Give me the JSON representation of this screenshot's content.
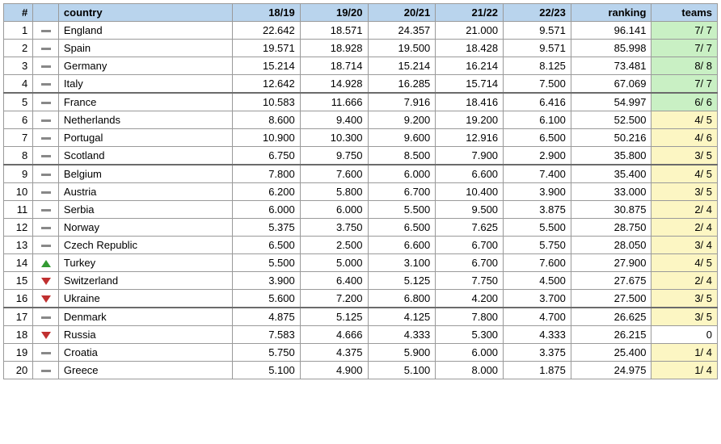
{
  "colors": {
    "header_bg": "#b9d4ed",
    "border": "#9a9a9a",
    "separator": "#6b6b6b",
    "teams_green": "#c9f0c4",
    "teams_yellow": "#fcf6c3",
    "teams_plain": "#ffffff",
    "up": "#339a33",
    "down": "#c03030",
    "flat": "#888888"
  },
  "headers": {
    "rank": "#",
    "move": "",
    "country": "country",
    "seasons": [
      "18/19",
      "19/20",
      "20/21",
      "21/22",
      "22/23"
    ],
    "ranking": "ranking",
    "teams": "teams"
  },
  "separators_after": [
    4,
    8,
    16
  ],
  "rows": [
    {
      "rank": 1,
      "trend": "flat",
      "country": "England",
      "s": [
        "22.642",
        "18.571",
        "24.357",
        "21.000",
        "9.571"
      ],
      "ranking": "96.141",
      "teams": "7/ 7",
      "teams_color": "teams_green"
    },
    {
      "rank": 2,
      "trend": "flat",
      "country": "Spain",
      "s": [
        "19.571",
        "18.928",
        "19.500",
        "18.428",
        "9.571"
      ],
      "ranking": "85.998",
      "teams": "7/ 7",
      "teams_color": "teams_green"
    },
    {
      "rank": 3,
      "trend": "flat",
      "country": "Germany",
      "s": [
        "15.214",
        "18.714",
        "15.214",
        "16.214",
        "8.125"
      ],
      "ranking": "73.481",
      "teams": "8/ 8",
      "teams_color": "teams_green"
    },
    {
      "rank": 4,
      "trend": "flat",
      "country": "Italy",
      "s": [
        "12.642",
        "14.928",
        "16.285",
        "15.714",
        "7.500"
      ],
      "ranking": "67.069",
      "teams": "7/ 7",
      "teams_color": "teams_green"
    },
    {
      "rank": 5,
      "trend": "flat",
      "country": "France",
      "s": [
        "10.583",
        "11.666",
        "7.916",
        "18.416",
        "6.416"
      ],
      "ranking": "54.997",
      "teams": "6/ 6",
      "teams_color": "teams_green"
    },
    {
      "rank": 6,
      "trend": "flat",
      "country": "Netherlands",
      "s": [
        "8.600",
        "9.400",
        "9.200",
        "19.200",
        "6.100"
      ],
      "ranking": "52.500",
      "teams": "4/ 5",
      "teams_color": "teams_yellow"
    },
    {
      "rank": 7,
      "trend": "flat",
      "country": "Portugal",
      "s": [
        "10.900",
        "10.300",
        "9.600",
        "12.916",
        "6.500"
      ],
      "ranking": "50.216",
      "teams": "4/ 6",
      "teams_color": "teams_yellow"
    },
    {
      "rank": 8,
      "trend": "flat",
      "country": "Scotland",
      "s": [
        "6.750",
        "9.750",
        "8.500",
        "7.900",
        "2.900"
      ],
      "ranking": "35.800",
      "teams": "3/ 5",
      "teams_color": "teams_yellow"
    },
    {
      "rank": 9,
      "trend": "flat",
      "country": "Belgium",
      "s": [
        "7.800",
        "7.600",
        "6.000",
        "6.600",
        "7.400"
      ],
      "ranking": "35.400",
      "teams": "4/ 5",
      "teams_color": "teams_yellow"
    },
    {
      "rank": 10,
      "trend": "flat",
      "country": "Austria",
      "s": [
        "6.200",
        "5.800",
        "6.700",
        "10.400",
        "3.900"
      ],
      "ranking": "33.000",
      "teams": "3/ 5",
      "teams_color": "teams_yellow"
    },
    {
      "rank": 11,
      "trend": "flat",
      "country": "Serbia",
      "s": [
        "6.000",
        "6.000",
        "5.500",
        "9.500",
        "3.875"
      ],
      "ranking": "30.875",
      "teams": "2/ 4",
      "teams_color": "teams_yellow"
    },
    {
      "rank": 12,
      "trend": "flat",
      "country": "Norway",
      "s": [
        "5.375",
        "3.750",
        "6.500",
        "7.625",
        "5.500"
      ],
      "ranking": "28.750",
      "teams": "2/ 4",
      "teams_color": "teams_yellow"
    },
    {
      "rank": 13,
      "trend": "flat",
      "country": "Czech Republic",
      "s": [
        "6.500",
        "2.500",
        "6.600",
        "6.700",
        "5.750"
      ],
      "ranking": "28.050",
      "teams": "3/ 4",
      "teams_color": "teams_yellow"
    },
    {
      "rank": 14,
      "trend": "up",
      "country": "Turkey",
      "s": [
        "5.500",
        "5.000",
        "3.100",
        "6.700",
        "7.600"
      ],
      "ranking": "27.900",
      "teams": "4/ 5",
      "teams_color": "teams_yellow"
    },
    {
      "rank": 15,
      "trend": "down",
      "country": "Switzerland",
      "s": [
        "3.900",
        "6.400",
        "5.125",
        "7.750",
        "4.500"
      ],
      "ranking": "27.675",
      "teams": "2/ 4",
      "teams_color": "teams_yellow"
    },
    {
      "rank": 16,
      "trend": "down",
      "country": "Ukraine",
      "s": [
        "5.600",
        "7.200",
        "6.800",
        "4.200",
        "3.700"
      ],
      "ranking": "27.500",
      "teams": "3/ 5",
      "teams_color": "teams_yellow"
    },
    {
      "rank": 17,
      "trend": "flat",
      "country": "Denmark",
      "s": [
        "4.875",
        "5.125",
        "4.125",
        "7.800",
        "4.700"
      ],
      "ranking": "26.625",
      "teams": "3/ 5",
      "teams_color": "teams_yellow"
    },
    {
      "rank": 18,
      "trend": "down",
      "country": "Russia",
      "s": [
        "7.583",
        "4.666",
        "4.333",
        "5.300",
        "4.333"
      ],
      "ranking": "26.215",
      "teams": "0",
      "teams_color": "teams_plain"
    },
    {
      "rank": 19,
      "trend": "flat",
      "country": "Croatia",
      "s": [
        "5.750",
        "4.375",
        "5.900",
        "6.000",
        "3.375"
      ],
      "ranking": "25.400",
      "teams": "1/ 4",
      "teams_color": "teams_yellow"
    },
    {
      "rank": 20,
      "trend": "flat",
      "country": "Greece",
      "s": [
        "5.100",
        "4.900",
        "5.100",
        "8.000",
        "1.875"
      ],
      "ranking": "24.975",
      "teams": "1/ 4",
      "teams_color": "teams_yellow"
    }
  ]
}
